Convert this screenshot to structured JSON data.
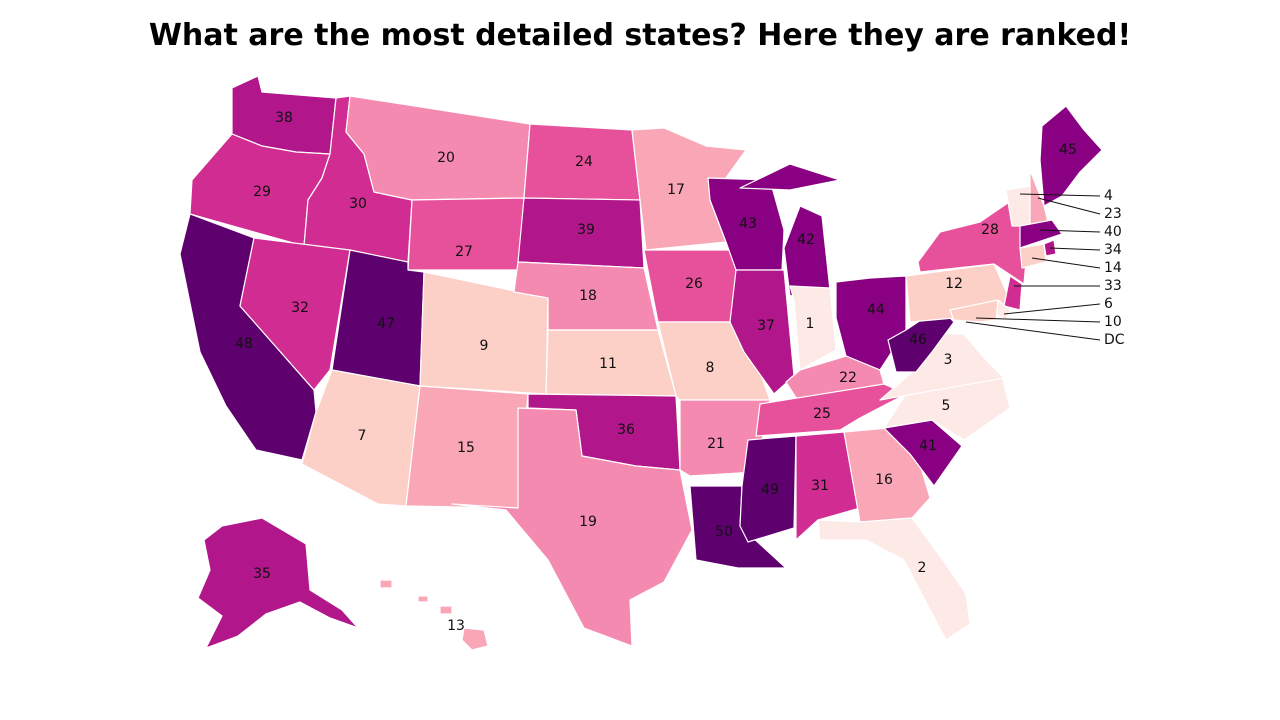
{
  "title": "What are the most detailed states? Here they are ranked!",
  "color_scale": [
    "#fde9e6",
    "#fccfc7",
    "#f9a6b7",
    "#f58ab0",
    "#e7509a",
    "#d12c92",
    "#b1168a",
    "#8a0082",
    "#5f006f"
  ],
  "states": [
    {
      "id": "WA",
      "rank": "38"
    },
    {
      "id": "OR",
      "rank": "29"
    },
    {
      "id": "CA",
      "rank": "48"
    },
    {
      "id": "ID",
      "rank": "30"
    },
    {
      "id": "NV",
      "rank": "32"
    },
    {
      "id": "MT",
      "rank": "20"
    },
    {
      "id": "WY",
      "rank": "27"
    },
    {
      "id": "UT",
      "rank": "47"
    },
    {
      "id": "AZ",
      "rank": "7"
    },
    {
      "id": "CO",
      "rank": "9"
    },
    {
      "id": "NM",
      "rank": "15"
    },
    {
      "id": "ND",
      "rank": "24"
    },
    {
      "id": "SD",
      "rank": "39"
    },
    {
      "id": "NE",
      "rank": "18"
    },
    {
      "id": "KS",
      "rank": "11"
    },
    {
      "id": "OK",
      "rank": "36"
    },
    {
      "id": "TX",
      "rank": "19"
    },
    {
      "id": "MN",
      "rank": "17"
    },
    {
      "id": "IA",
      "rank": "26"
    },
    {
      "id": "MO",
      "rank": "8"
    },
    {
      "id": "AR",
      "rank": "21"
    },
    {
      "id": "LA",
      "rank": "50"
    },
    {
      "id": "WI",
      "rank": "43"
    },
    {
      "id": "IL",
      "rank": "37"
    },
    {
      "id": "MI",
      "rank": "42"
    },
    {
      "id": "IN",
      "rank": "1"
    },
    {
      "id": "OH",
      "rank": "44"
    },
    {
      "id": "KY",
      "rank": "22"
    },
    {
      "id": "TN",
      "rank": "25"
    },
    {
      "id": "MS",
      "rank": "49"
    },
    {
      "id": "AL",
      "rank": "31"
    },
    {
      "id": "GA",
      "rank": "16"
    },
    {
      "id": "FL",
      "rank": "2"
    },
    {
      "id": "SC",
      "rank": "41"
    },
    {
      "id": "NC",
      "rank": "5"
    },
    {
      "id": "VA",
      "rank": "3"
    },
    {
      "id": "WV",
      "rank": "46"
    },
    {
      "id": "PA",
      "rank": "12"
    },
    {
      "id": "NY",
      "rank": "28"
    },
    {
      "id": "ME",
      "rank": "45"
    },
    {
      "id": "AK",
      "rank": "35"
    },
    {
      "id": "HI",
      "rank": "13"
    }
  ],
  "callouts": [
    {
      "label": "4"
    },
    {
      "label": "23"
    },
    {
      "label": "40"
    },
    {
      "label": "34"
    },
    {
      "label": "14"
    },
    {
      "label": "33"
    },
    {
      "label": "6"
    },
    {
      "label": "10"
    },
    {
      "label": "DC"
    }
  ]
}
